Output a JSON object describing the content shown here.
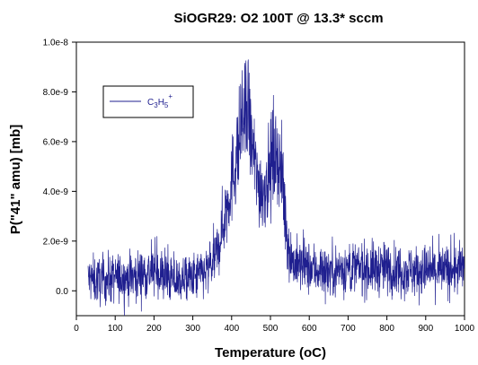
{
  "chart_data": {
    "type": "line",
    "title": "SiOGR29: O2 100T @ 13.3* sccm",
    "xlabel": "Temperature (oC)",
    "ylabel": "P(\"41\" amu) [mb]",
    "xlim": [
      0,
      1000
    ],
    "ylim": [
      -1e-09,
      1e-08
    ],
    "x_ticks": [
      0,
      100,
      200,
      300,
      400,
      500,
      600,
      700,
      800,
      900,
      1000
    ],
    "x_tick_labels": [
      "0",
      "100",
      "200",
      "300",
      "400",
      "500",
      "600",
      "700",
      "800",
      "900",
      "1000"
    ],
    "y_ticks": [
      0,
      2e-09,
      4e-09,
      6e-09,
      8e-09,
      1e-08
    ],
    "y_tick_labels": [
      "0.0",
      "2.0e-9",
      "4.0e-9",
      "6.0e-9",
      "8.0e-9",
      "1.0e-8"
    ],
    "grid": false,
    "legend_position": "top-left",
    "series": [
      {
        "name": "C3H5+",
        "color": "#1f1f8f",
        "x": [
          30,
          50,
          100,
          150,
          200,
          250,
          300,
          340,
          360,
          380,
          400,
          420,
          430,
          440,
          450,
          460,
          470,
          480,
          490,
          500,
          510,
          520,
          530,
          540,
          550,
          560,
          600,
          650,
          700,
          750,
          800,
          850,
          900,
          950,
          1000
        ],
        "y": [
          5e-10,
          4e-10,
          5e-10,
          6e-10,
          8e-10,
          4e-10,
          5e-10,
          8e-10,
          1.4e-09,
          2.8e-09,
          4.4e-09,
          6e-09,
          6.9e-09,
          7e-09,
          6.2e-09,
          5e-09,
          4.3e-09,
          4e-09,
          4.4e-09,
          5e-09,
          5.6e-09,
          5.4e-09,
          4.4e-09,
          2.6e-09,
          1.5e-09,
          1.1e-09,
          9e-10,
          8e-10,
          9e-10,
          9e-10,
          9e-10,
          8e-10,
          8e-10,
          8e-10,
          9e-10
        ]
      }
    ]
  }
}
